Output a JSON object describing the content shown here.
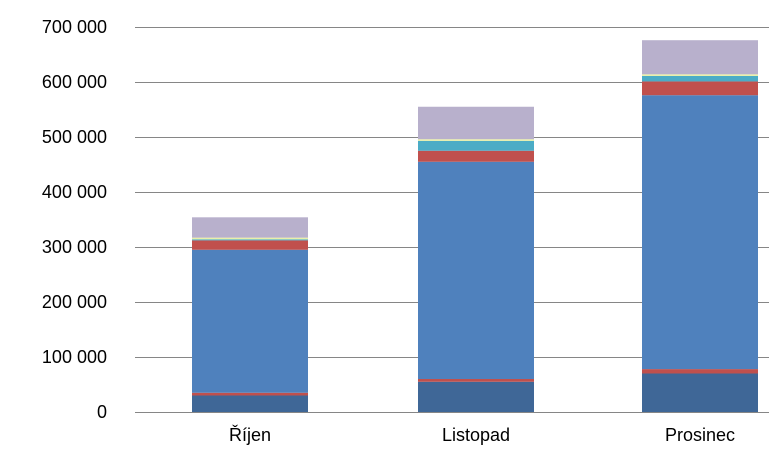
{
  "chart_data": {
    "type": "bar",
    "stacked": true,
    "categories": [
      "Říjen",
      "Listopad",
      "Prosinec"
    ],
    "ylim": [
      0,
      700000
    ],
    "yticks": [
      0,
      100000,
      200000,
      300000,
      400000,
      500000,
      600000,
      700000
    ],
    "ytick_labels": [
      "0",
      "100 000",
      "200 000",
      "300 000",
      "400 000",
      "500 000",
      "600 000",
      "700 000"
    ],
    "grid": true,
    "series": [
      {
        "values": [
          30000,
          55000,
          70000
        ],
        "color": "#3f6797"
      },
      {
        "values": [
          5000,
          5000,
          8000
        ],
        "color": "#c0504d"
      },
      {
        "values": [
          260000,
          395000,
          498000
        ],
        "color": "#4f81bd"
      },
      {
        "values": [
          17000,
          20000,
          25000
        ],
        "color": "#c0504d"
      },
      {
        "values": [
          2000,
          18000,
          10000
        ],
        "color": "#4bacc6"
      },
      {
        "values": [
          3000,
          3000,
          3000
        ],
        "color": "#e8efa8"
      },
      {
        "values": [
          37000,
          59000,
          62000
        ],
        "color": "#b8b0cc"
      }
    ]
  }
}
